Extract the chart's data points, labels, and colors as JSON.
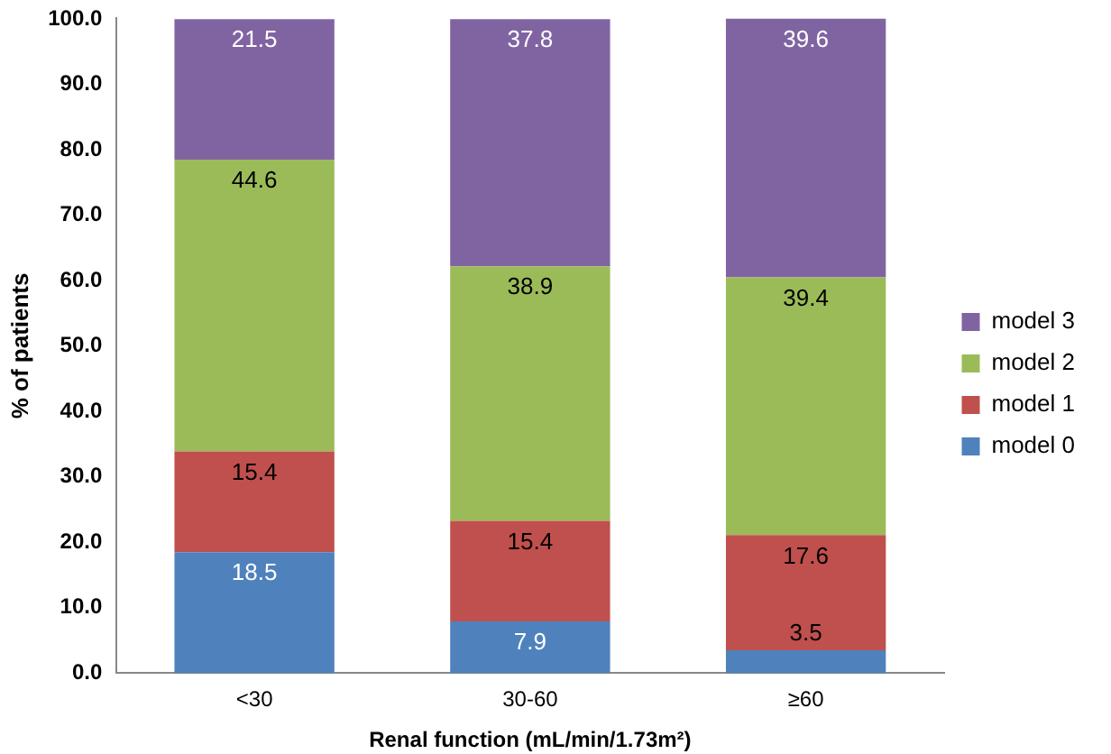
{
  "chart_data": {
    "type": "bar",
    "stacked": true,
    "categories": [
      "<30",
      "30-60",
      "≥60"
    ],
    "series": [
      {
        "name": "model 0",
        "color": "#4f81bd",
        "values": [
          18.5,
          7.9,
          3.5
        ]
      },
      {
        "name": "model 1",
        "color": "#c0504d",
        "values": [
          15.4,
          15.4,
          17.6
        ]
      },
      {
        "name": "model 2",
        "color": "#9bbb59",
        "values": [
          44.6,
          38.9,
          39.4
        ]
      },
      {
        "name": "model 3",
        "color": "#8064a2",
        "values": [
          21.5,
          37.8,
          39.6
        ]
      }
    ],
    "xlabel": "Renal function (mL/min/1.73m²)",
    "ylabel": "% of patients",
    "ylim": [
      0,
      100.1
    ],
    "yticks": [
      {
        "value": 0,
        "label": "0.0"
      },
      {
        "value": 10,
        "label": "10.0"
      },
      {
        "value": 20,
        "label": "20.0"
      },
      {
        "value": 30,
        "label": "30.0"
      },
      {
        "value": 40,
        "label": "40.0"
      },
      {
        "value": 50,
        "label": "50.0"
      },
      {
        "value": 60,
        "label": "60.0"
      },
      {
        "value": 70,
        "label": "70.0"
      },
      {
        "value": 80,
        "label": "80.0"
      },
      {
        "value": 90,
        "label": "90.0"
      },
      {
        "value": 100,
        "label": "100.0"
      }
    ],
    "grid": false,
    "legend": "right",
    "data_labels": true
  }
}
